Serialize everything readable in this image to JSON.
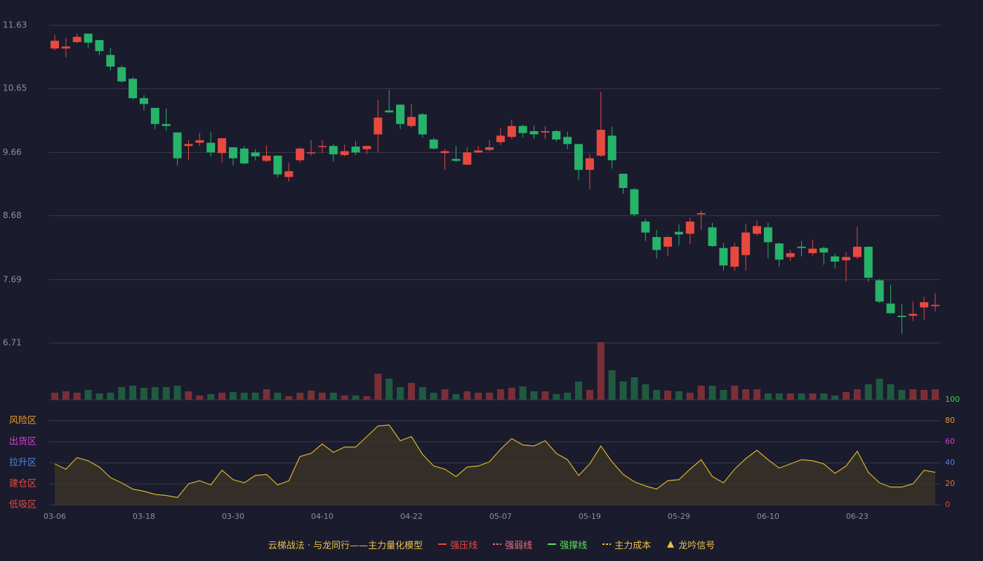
{
  "chart_data": {
    "type": "candlestick",
    "categories": [
      "03-06",
      null,
      null,
      null,
      null,
      null,
      null,
      null,
      "03-18",
      null,
      null,
      null,
      null,
      null,
      null,
      null,
      "03-30",
      null,
      null,
      null,
      null,
      null,
      null,
      null,
      "04-10",
      null,
      null,
      null,
      null,
      null,
      null,
      null,
      "04-22",
      null,
      null,
      null,
      null,
      null,
      null,
      null,
      "05-07",
      null,
      null,
      null,
      null,
      null,
      null,
      null,
      "05-19",
      null,
      null,
      null,
      null,
      null,
      null,
      null,
      "05-29",
      null,
      null,
      null,
      null,
      null,
      null,
      null,
      "06-10",
      null,
      null,
      null,
      null,
      null,
      null,
      null,
      "06-23",
      null,
      null,
      null,
      null,
      null,
      null,
      null
    ],
    "open": [
      11.27,
      11.27,
      11.37,
      11.5,
      11.4,
      11.17,
      10.98,
      10.8,
      10.5,
      10.35,
      10.1,
      9.97,
      9.76,
      9.81,
      9.81,
      9.65,
      9.74,
      9.72,
      9.66,
      9.53,
      9.61,
      9.28,
      9.54,
      9.65,
      9.75,
      9.76,
      9.62,
      9.75,
      9.71,
      9.94,
      10.31,
      10.4,
      10.07,
      10.25,
      9.86,
      9.65,
      9.56,
      9.47,
      9.66,
      9.7,
      9.82,
      9.9,
      10.07,
      9.99,
      9.97,
      9.99,
      9.9,
      9.79,
      9.39,
      9.61,
      9.92,
      9.33,
      9.09,
      8.59,
      8.35,
      8.2,
      8.43,
      8.4,
      8.7,
      8.5,
      8.18,
      7.89,
      8.07,
      8.4,
      8.5,
      8.25,
      8.04,
      8.2,
      8.1,
      8.18,
      8.05,
      7.99,
      8.04,
      8.2,
      7.68,
      7.32,
      7.13,
      7.13,
      7.26,
      7.28
    ],
    "close": [
      11.39,
      11.3,
      11.45,
      11.36,
      11.23,
      10.99,
      10.76,
      10.5,
      10.41,
      10.1,
      10.07,
      9.57,
      9.79,
      9.85,
      9.66,
      9.88,
      9.57,
      9.49,
      9.6,
      9.61,
      9.32,
      9.37,
      9.72,
      9.66,
      9.76,
      9.63,
      9.68,
      9.66,
      9.76,
      10.2,
      10.28,
      10.1,
      10.21,
      9.94,
      9.72,
      9.68,
      9.53,
      9.66,
      9.69,
      9.74,
      9.92,
      10.07,
      9.96,
      9.94,
      9.99,
      9.86,
      9.79,
      9.39,
      9.57,
      10.01,
      9.54,
      9.11,
      8.7,
      8.42,
      8.15,
      8.35,
      8.39,
      8.59,
      8.72,
      8.21,
      7.91,
      8.2,
      8.42,
      8.52,
      8.27,
      8.0,
      8.1,
      8.18,
      8.17,
      8.11,
      7.97,
      8.04,
      8.2,
      7.72,
      7.35,
      7.17,
      7.11,
      7.16,
      7.34,
      7.3
    ],
    "low": [
      11.24,
      11.13,
      11.35,
      11.28,
      11.17,
      10.93,
      10.74,
      10.48,
      10.31,
      10.02,
      10.0,
      9.46,
      9.54,
      9.76,
      9.6,
      9.5,
      9.46,
      9.47,
      9.54,
      9.51,
      9.27,
      9.21,
      9.5,
      9.61,
      9.65,
      9.52,
      9.6,
      9.62,
      9.63,
      9.66,
      10.28,
      10.02,
      10.04,
      9.89,
      9.7,
      9.39,
      9.51,
      9.47,
      9.65,
      9.68,
      9.77,
      9.87,
      9.89,
      9.87,
      9.87,
      9.83,
      9.71,
      9.24,
      9.09,
      9.59,
      9.41,
      9.02,
      8.67,
      8.29,
      8.02,
      8.06,
      8.22,
      8.24,
      8.46,
      8.2,
      7.83,
      7.83,
      7.83,
      8.37,
      8.02,
      7.89,
      7.98,
      8.05,
      8.06,
      7.92,
      7.86,
      7.66,
      8.01,
      7.66,
      7.33,
      7.16,
      6.85,
      7.05,
      7.07,
      7.2
    ],
    "high": [
      11.48,
      11.43,
      11.5,
      11.5,
      11.4,
      11.28,
      11.01,
      10.83,
      10.55,
      10.35,
      10.34,
      9.97,
      9.85,
      9.96,
      9.98,
      9.88,
      9.74,
      9.76,
      9.71,
      9.77,
      9.61,
      9.5,
      9.74,
      9.85,
      9.85,
      9.79,
      9.78,
      9.84,
      9.76,
      10.48,
      10.63,
      10.4,
      10.41,
      10.27,
      9.89,
      9.71,
      9.76,
      9.74,
      9.76,
      9.85,
      10.04,
      10.17,
      10.09,
      10.08,
      10.07,
      10.01,
      9.98,
      9.79,
      9.64,
      10.6,
      10.06,
      9.33,
      9.11,
      8.63,
      8.46,
      8.37,
      8.55,
      8.65,
      8.76,
      8.57,
      8.26,
      8.26,
      8.55,
      8.61,
      8.57,
      8.26,
      8.15,
      8.29,
      8.31,
      8.2,
      8.09,
      8.11,
      8.51,
      8.2,
      7.7,
      7.61,
      7.31,
      7.35,
      7.42,
      7.48
    ],
    "ylim": [
      6.71,
      11.63
    ],
    "yticks": [
      11.63,
      10.65,
      9.66,
      8.68,
      7.69,
      6.71
    ],
    "grid": true,
    "up_color": "#e8493f",
    "down_color": "#27b36a",
    "up_volume_color": "#7a2f37",
    "down_volume_color": "#1f5a41",
    "volume": {
      "values": [
        10,
        12,
        10,
        14,
        9,
        10,
        18,
        20,
        17,
        18,
        18,
        20,
        12,
        6,
        8,
        10,
        11,
        10,
        10,
        15,
        10,
        5,
        10,
        13,
        10,
        10,
        6,
        6,
        5,
        37,
        30,
        18,
        24,
        18,
        10,
        15,
        8,
        12,
        10,
        10,
        15,
        17,
        19,
        12,
        12,
        8,
        10,
        26,
        14,
        82,
        42,
        26,
        32,
        22,
        14,
        13,
        12,
        10,
        20,
        20,
        14,
        20,
        15,
        15,
        9,
        9,
        9,
        9,
        9,
        9,
        6,
        11,
        15,
        22,
        30,
        22,
        14,
        15,
        14,
        15
      ]
    },
    "indicator": {
      "values": [
        39,
        34,
        45,
        42,
        36,
        26,
        21,
        15,
        13,
        10,
        9,
        7,
        20,
        23,
        19,
        33,
        24,
        21,
        28,
        29,
        19,
        23,
        46,
        49,
        58,
        50,
        55,
        55,
        65,
        75,
        76,
        61,
        65,
        48,
        37,
        34,
        27,
        36,
        37,
        41,
        53,
        63,
        57,
        56,
        61,
        49,
        43,
        28,
        39,
        56,
        41,
        29,
        22,
        18,
        15,
        23,
        24,
        34,
        43,
        27,
        21,
        34,
        44,
        52,
        43,
        35,
        39,
        43,
        42,
        39,
        30,
        37,
        51,
        31,
        21,
        17,
        17,
        20,
        33,
        31
      ],
      "color": "#d9b42c",
      "fill": "#3a3427",
      "ylim": [
        0,
        100
      ],
      "yticks": [
        100,
        80,
        60,
        40,
        20,
        0
      ],
      "ytick_colors": [
        "#3ecf5a",
        "#e89a2c",
        "#d63fd6",
        "#4a86e8",
        "#e8703a",
        "#e8493f"
      ],
      "zones": [
        {
          "label": "风险区",
          "value": 80,
          "color": "#e89a2c"
        },
        {
          "label": "出货区",
          "value": 60,
          "color": "#d63fd6"
        },
        {
          "label": "拉升区",
          "value": 40,
          "color": "#4a86e8"
        },
        {
          "label": "建仓区",
          "value": 20,
          "color": "#e8493f"
        },
        {
          "label": "低吸区",
          "value": 0,
          "color": "#e8493f"
        }
      ]
    },
    "legend": {
      "title": "云梯战法 · 与龙同行——主力量化模型",
      "title_color": "#e8c04a",
      "items": [
        {
          "name": "强压线",
          "color": "#e8493f",
          "style": "solid"
        },
        {
          "name": "强弱线",
          "color": "#f07080",
          "style": "dashed"
        },
        {
          "name": "强撑线",
          "color": "#5ee05e",
          "style": "solid"
        },
        {
          "name": "主力成本",
          "color": "#e8c04a",
          "style": "dashed"
        },
        {
          "name": "龙吟信号",
          "color": "#e8c04a",
          "style": "triangle"
        }
      ]
    }
  }
}
